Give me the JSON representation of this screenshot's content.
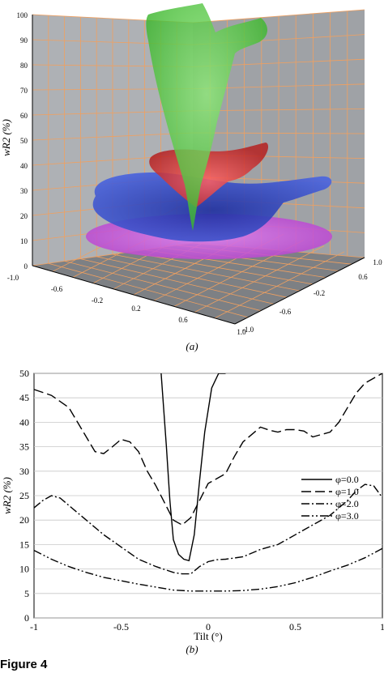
{
  "figure_label": "Figure 4",
  "colors": {
    "panel_a_wall": "#a9acb0",
    "panel_a_floor": "#7f8286",
    "panel_a_grid": "#f0a060",
    "surface_green": "#4fcf3f",
    "surface_red": "#e23a3a",
    "surface_blue": "#2f47c8",
    "surface_purple": "#c24fd8",
    "axis": "#000000"
  },
  "chart_data": [
    {
      "type": "surface3d",
      "panel_label": "(a)",
      "zlabel": "wR2 (%)",
      "zlim": [
        0,
        100
      ],
      "z_ticks": [
        "0",
        "10",
        "20",
        "30",
        "40",
        "50",
        "60",
        "70",
        "80",
        "90",
        "100"
      ],
      "x_ticks": [
        "-1.0",
        "-0.6",
        "-0.2",
        "0.2",
        "0.6",
        "1.0"
      ],
      "y_ticks": [
        "1.0",
        "0.6",
        "-0.2",
        "-0.6",
        "-1.0"
      ],
      "surfaces": [
        {
          "color": "green",
          "min": 2,
          "max": 100
        },
        {
          "color": "red",
          "min": 11,
          "max": 46
        },
        {
          "color": "blue",
          "min": 9,
          "max": 35
        },
        {
          "color": "purple",
          "min": 5,
          "max": 18
        }
      ],
      "grid": true
    },
    {
      "type": "line",
      "panel_label": "(b)",
      "xlabel": "Tilt (°)",
      "ylabel": "wR2 (%)",
      "xlim": [
        -1,
        1
      ],
      "ylim": [
        0,
        50
      ],
      "x_ticks": [
        "-1",
        "-0.5",
        "0",
        "0.5",
        "1"
      ],
      "y_ticks": [
        "0",
        "5",
        "10",
        "15",
        "20",
        "25",
        "30",
        "35",
        "40",
        "45",
        "50"
      ],
      "legend_position": "right",
      "series": [
        {
          "name": "φ=0.0",
          "dash": "solid",
          "x": [
            -0.27,
            -0.24,
            -0.22,
            -0.2,
            -0.17,
            -0.14,
            -0.11,
            -0.08,
            -0.05,
            -0.02,
            0.02,
            0.06,
            0.1
          ],
          "y": [
            50,
            35,
            24,
            16,
            13,
            12,
            11.7,
            17,
            28,
            38,
            47,
            50,
            50
          ]
        },
        {
          "name": "φ=1.0",
          "dash": "long",
          "x": [
            -1,
            -0.9,
            -0.8,
            -0.7,
            -0.65,
            -0.6,
            -0.55,
            -0.5,
            -0.45,
            -0.4,
            -0.35,
            -0.3,
            -0.25,
            -0.2,
            -0.15,
            -0.1,
            -0.05,
            0,
            0.05,
            0.1,
            0.15,
            0.2,
            0.3,
            0.35,
            0.4,
            0.45,
            0.5,
            0.55,
            0.6,
            0.7,
            0.75,
            0.8,
            0.85,
            0.9,
            0.95,
            1
          ],
          "y": [
            46.7,
            45.5,
            43,
            37,
            34,
            33.6,
            35,
            36.5,
            36,
            34,
            30,
            27,
            23.5,
            20,
            19,
            20.5,
            24,
            27.5,
            28.5,
            29.5,
            33,
            36,
            39,
            38.4,
            38,
            38.5,
            38.5,
            38.2,
            37,
            38,
            40,
            43,
            46,
            48,
            49,
            50
          ]
        },
        {
          "name": "φ=2.0",
          "dash": "dashdot",
          "x": [
            -1,
            -0.95,
            -0.9,
            -0.85,
            -0.8,
            -0.7,
            -0.6,
            -0.5,
            -0.4,
            -0.3,
            -0.2,
            -0.15,
            -0.1,
            -0.05,
            0,
            0.05,
            0.1,
            0.2,
            0.3,
            0.4,
            0.5,
            0.6,
            0.7,
            0.8,
            0.85,
            0.9,
            0.95,
            1
          ],
          "y": [
            22.5,
            24,
            25,
            24.5,
            23,
            20,
            17,
            14.5,
            12,
            10.5,
            9.3,
            9,
            9,
            10.5,
            11.5,
            11.9,
            12,
            12.5,
            14,
            15,
            17,
            19,
            21,
            24,
            26,
            27.3,
            27,
            24.6
          ]
        },
        {
          "name": "φ=3.0",
          "dash": "dashdotdot",
          "x": [
            -1,
            -0.9,
            -0.8,
            -0.7,
            -0.6,
            -0.5,
            -0.4,
            -0.3,
            -0.2,
            -0.1,
            0,
            0.1,
            0.2,
            0.3,
            0.4,
            0.5,
            0.6,
            0.7,
            0.8,
            0.9,
            1
          ],
          "y": [
            13.8,
            12,
            10.5,
            9.3,
            8.3,
            7.6,
            6.9,
            6.3,
            5.7,
            5.5,
            5.5,
            5.5,
            5.6,
            5.9,
            6.4,
            7.2,
            8.3,
            9.6,
            10.8,
            12.3,
            14.2
          ]
        }
      ]
    }
  ]
}
